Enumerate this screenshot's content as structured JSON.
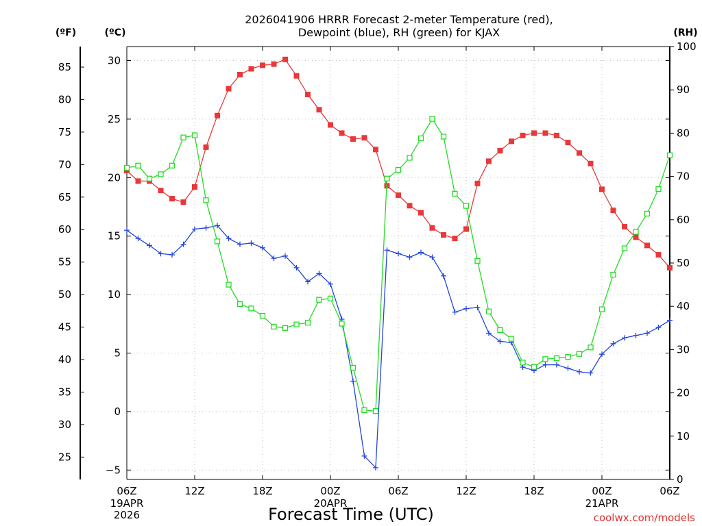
{
  "chart_data": {
    "type": "line",
    "title_line1": "2026041906 HRRR Forecast 2-meter Temperature (red),",
    "title_line2": "Dewpoint (blue), RH (green) for KJAX",
    "unit_f": "(ºF)",
    "unit_c": "(ºC)",
    "unit_rh": "(RH)",
    "xlabel": "Forecast Time (UTC)",
    "credit": "coolwx.com/models",
    "x_hours_range": [
      0,
      48
    ],
    "xticks": [
      {
        "h": 0,
        "label": "06Z",
        "sub1": "19APR",
        "sub2": "2026"
      },
      {
        "h": 6,
        "label": "12Z",
        "sub1": "",
        "sub2": ""
      },
      {
        "h": 12,
        "label": "18Z",
        "sub1": "",
        "sub2": ""
      },
      {
        "h": 18,
        "label": "00Z",
        "sub1": "20APR",
        "sub2": ""
      },
      {
        "h": 24,
        "label": "06Z",
        "sub1": "",
        "sub2": ""
      },
      {
        "h": 30,
        "label": "12Z",
        "sub1": "",
        "sub2": ""
      },
      {
        "h": 36,
        "label": "18Z",
        "sub1": "",
        "sub2": ""
      },
      {
        "h": 42,
        "label": "00Z",
        "sub1": "21APR",
        "sub2": ""
      },
      {
        "h": 48,
        "label": "06Z",
        "sub1": "",
        "sub2": ""
      }
    ],
    "c_axis": {
      "range": [
        -5.8,
        31.2
      ],
      "ticks": [
        -5,
        0,
        5,
        10,
        15,
        20,
        25,
        30
      ],
      "labels": [
        "−5",
        "0",
        "5",
        "10",
        "15",
        "20",
        "25",
        "30"
      ]
    },
    "f_axis": {
      "ticks": [
        25,
        30,
        35,
        40,
        45,
        50,
        55,
        60,
        65,
        70,
        75,
        80,
        85
      ],
      "labels": [
        "25",
        "30",
        "35",
        "40",
        "45",
        "50",
        "55",
        "60",
        "65",
        "70",
        "75",
        "80",
        "85"
      ]
    },
    "rh_axis": {
      "range": [
        0,
        100
      ],
      "ticks": [
        0,
        10,
        20,
        30,
        40,
        50,
        60,
        70,
        80,
        90,
        100
      ],
      "labels": [
        "0",
        "10",
        "20",
        "30",
        "40",
        "50",
        "60",
        "70",
        "80",
        "90",
        "100"
      ]
    },
    "series": [
      {
        "name": "Temperature (°C)",
        "color": "#e8383a",
        "axis": "c",
        "marker": "filled-square",
        "values": [
          20.6,
          19.7,
          19.7,
          18.9,
          18.2,
          17.9,
          19.2,
          22.6,
          25.3,
          27.6,
          28.8,
          29.3,
          29.6,
          29.7,
          30.1,
          28.7,
          27.1,
          25.8,
          24.5,
          23.8,
          23.3,
          23.4,
          22.4,
          19.3,
          18.5,
          17.6,
          17.0,
          15.7,
          15.1,
          14.8,
          15.6,
          19.5,
          21.4,
          22.3,
          23.1,
          23.6,
          23.8,
          23.8,
          23.6,
          23.0,
          22.1,
          21.2,
          19.0,
          17.2,
          15.8,
          14.9,
          14.2,
          13.4,
          12.3
        ]
      },
      {
        "name": "Dewpoint (°C)",
        "color": "#2244dd",
        "axis": "c",
        "marker": "plus",
        "values": [
          15.5,
          14.8,
          14.2,
          13.5,
          13.4,
          14.3,
          15.6,
          15.7,
          15.9,
          14.8,
          14.3,
          14.4,
          14.0,
          13.1,
          13.3,
          12.3,
          11.1,
          11.8,
          10.9,
          7.9,
          2.6,
          -3.8,
          -4.8,
          13.8,
          13.5,
          13.2,
          13.6,
          13.2,
          11.6,
          8.5,
          8.8,
          8.9,
          6.7,
          6.0,
          5.9,
          3.8,
          3.5,
          4.0,
          4.0,
          3.7,
          3.4,
          3.3,
          4.9,
          5.8,
          6.3,
          6.5,
          6.7,
          7.2,
          7.8
        ]
      },
      {
        "name": "RH (%)",
        "color": "#22dd22",
        "axis": "rh",
        "marker": "open-square",
        "values": [
          72,
          72.5,
          69.5,
          70.5,
          72.5,
          79,
          79.5,
          64.5,
          55,
          45,
          40.5,
          39.5,
          37.8,
          35.3,
          35,
          35.8,
          36.2,
          41.5,
          41.8,
          36,
          25.8,
          16,
          15.8,
          69.5,
          71.5,
          74.3,
          78.8,
          83.3,
          79.2,
          66,
          63.2,
          50.5,
          38.8,
          34.5,
          32.5,
          27,
          26,
          27.8,
          28,
          28.3,
          29,
          30.5,
          39.3,
          47.3,
          53.4,
          57.2,
          61.4,
          67.1,
          74.9
        ]
      }
    ]
  }
}
